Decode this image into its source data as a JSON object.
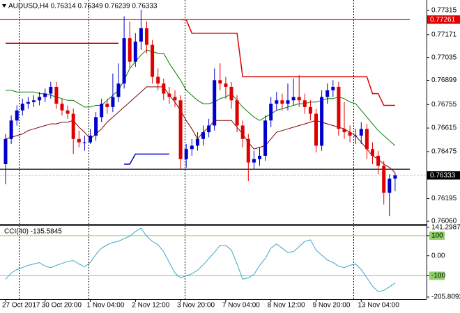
{
  "chart_data": [
    {
      "type": "candlestick",
      "title": "AUDUSD,H4  0.76314 0.76349 0.76239 0.76333",
      "categories": [
        "27 Oct 2017",
        null,
        null,
        null,
        null,
        null,
        null,
        "30 Oct 20:00",
        null,
        null,
        null,
        null,
        null,
        null,
        null,
        "1 Nov 04:00",
        null,
        null,
        null,
        null,
        null,
        null,
        null,
        "2 Nov 12:00",
        null,
        null,
        null,
        null,
        null,
        null,
        null,
        "3 Nov 20:00",
        null,
        null,
        null,
        null,
        null,
        null,
        null,
        "7 Nov 04:00",
        null,
        null,
        null,
        null,
        null,
        null,
        null,
        "8 Nov 12:00",
        null,
        null,
        null,
        null,
        null,
        null,
        null,
        "9 Nov 20:00",
        null,
        null,
        null,
        null,
        null,
        null,
        null,
        "13 Nov 04:00",
        null,
        null,
        null,
        null,
        null,
        null
      ],
      "open": [
        0.764,
        0.7655,
        0.7666,
        0.7672,
        0.7676,
        0.7677,
        0.7678,
        0.768,
        0.7682,
        0.7686,
        0.7676,
        0.7672,
        0.767,
        0.7655,
        0.7653,
        0.7653,
        0.7657,
        0.7668,
        0.7676,
        0.7674,
        0.768,
        0.7688,
        0.7715,
        0.7701,
        0.7713,
        0.7721,
        0.7711,
        0.7692,
        0.7688,
        0.7682,
        0.768,
        0.7678,
        0.7643,
        0.7649,
        0.7651,
        0.7655,
        0.7659,
        0.7663,
        0.769,
        0.7688,
        0.7686,
        0.7678,
        0.7663,
        0.7655,
        0.7641,
        0.7643,
        0.7645,
        0.7666,
        0.7676,
        0.7678,
        0.7676,
        0.7678,
        0.768,
        0.7678,
        0.7674,
        0.767,
        0.7651,
        0.768,
        0.7684,
        0.7686,
        0.7661,
        0.7659,
        0.7657,
        0.7657,
        0.7661,
        0.7649,
        0.7645,
        0.7639,
        0.7623,
        0.76314
      ],
      "high": [
        0.7658,
        0.7669,
        0.7675,
        0.7679,
        0.768,
        0.7681,
        0.7683,
        0.7685,
        0.7689,
        0.7689,
        0.7679,
        0.7675,
        0.7673,
        0.766,
        0.7657,
        0.7661,
        0.7671,
        0.7679,
        0.7679,
        0.7694,
        0.77,
        0.7728,
        0.7725,
        0.7718,
        0.7732,
        0.7725,
        0.7714,
        0.7697,
        0.7691,
        0.7686,
        0.7684,
        0.7681,
        0.7652,
        0.7655,
        0.7659,
        0.7663,
        0.7667,
        0.7697,
        0.77,
        0.7692,
        0.7689,
        0.7681,
        0.7666,
        0.7658,
        0.7648,
        0.765,
        0.7669,
        0.768,
        0.7683,
        0.7682,
        0.7688,
        0.7691,
        0.7693,
        0.7682,
        0.7678,
        0.7673,
        0.7684,
        0.7688,
        0.769,
        0.7689,
        0.7677,
        0.7663,
        0.7661,
        0.7665,
        0.7664,
        0.7653,
        0.7648,
        0.7642,
        0.7634,
        0.76349
      ],
      "low": [
        0.7628,
        0.7652,
        0.7663,
        0.7669,
        0.7673,
        0.7674,
        0.7675,
        0.7677,
        0.7679,
        0.7673,
        0.7669,
        0.7667,
        0.7646,
        0.765,
        0.7648,
        0.7652,
        0.7654,
        0.7665,
        0.767,
        0.7671,
        0.7677,
        0.7685,
        0.7697,
        0.7698,
        0.7708,
        0.7706,
        0.7688,
        0.7684,
        0.7678,
        0.7676,
        0.7674,
        0.7637,
        0.7638,
        0.7645,
        0.7648,
        0.7651,
        0.7656,
        0.766,
        0.7684,
        0.7679,
        0.7673,
        0.7659,
        0.765,
        0.763,
        0.7637,
        0.7639,
        0.7642,
        0.7662,
        0.7672,
        0.7672,
        0.7672,
        0.7675,
        0.7674,
        0.767,
        0.7666,
        0.7647,
        0.7648,
        0.7676,
        0.768,
        0.7657,
        0.7655,
        0.7653,
        0.7652,
        0.7652,
        0.7643,
        0.764,
        0.7634,
        0.7616,
        0.7609,
        0.76239
      ],
      "close": [
        0.7655,
        0.7666,
        0.7672,
        0.7676,
        0.7677,
        0.7678,
        0.768,
        0.7682,
        0.7686,
        0.7676,
        0.7672,
        0.767,
        0.7655,
        0.7653,
        0.7653,
        0.7657,
        0.7668,
        0.7676,
        0.7674,
        0.768,
        0.7688,
        0.7715,
        0.7701,
        0.7713,
        0.7721,
        0.7711,
        0.7692,
        0.7688,
        0.7682,
        0.768,
        0.7678,
        0.7643,
        0.7649,
        0.7651,
        0.7655,
        0.7659,
        0.7663,
        0.769,
        0.7688,
        0.7686,
        0.7678,
        0.7663,
        0.7655,
        0.7641,
        0.7643,
        0.7645,
        0.7666,
        0.7676,
        0.7678,
        0.7676,
        0.7678,
        0.768,
        0.7678,
        0.7674,
        0.767,
        0.7651,
        0.768,
        0.7684,
        0.7686,
        0.7661,
        0.7659,
        0.7657,
        0.7657,
        0.7661,
        0.7649,
        0.7645,
        0.7639,
        0.7623,
        0.76314,
        0.76333
      ],
      "up_color": "#0000cc",
      "down_color": "#e00000",
      "series": [
        {
          "color": "#008000",
          "values": [
            0.7684,
            0.7684,
            0.7683,
            0.7683,
            0.7683,
            0.7683,
            0.7682,
            0.7682,
            0.7681,
            0.768,
            0.7679,
            0.7678,
            0.7678,
            0.7676,
            0.7674,
            0.7674,
            0.7675,
            0.7675,
            0.7678,
            0.7681,
            0.7684,
            0.769,
            0.7697,
            0.7701,
            0.7705,
            0.7708,
            0.7707,
            0.7706,
            0.7706,
            0.77,
            0.7695,
            0.769,
            0.7684,
            0.7681,
            0.7678,
            0.7676,
            0.7676,
            0.7677,
            0.7679,
            0.768,
            0.7682,
            0.7678,
            0.7674,
            0.7671,
            0.7668,
            0.7666,
            0.7668,
            0.767,
            0.7672,
            0.7673,
            0.7674,
            0.7675,
            0.7676,
            0.7676,
            0.7677,
            0.7677,
            0.7678,
            0.7679,
            0.7679,
            0.768,
            0.7679,
            0.7677,
            0.7676,
            0.7672,
            0.7668,
            0.7664,
            0.766,
            0.7657,
            0.7654,
            0.7651
          ]
        },
        {
          "color": "#800000",
          "values": [
            0.7655,
            0.7656,
            0.7657,
            0.7658,
            0.766,
            0.7661,
            0.7662,
            0.7663,
            0.7664,
            0.7664,
            0.7665,
            0.7665,
            0.7666,
            0.7662,
            0.7659,
            0.7655,
            0.7658,
            0.7661,
            0.7665,
            0.7668,
            0.7671,
            0.7674,
            0.7677,
            0.768,
            0.7683,
            0.7686,
            0.7686,
            0.7686,
            0.7686,
            0.7681,
            0.7677,
            0.7672,
            0.7666,
            0.7661,
            0.7655,
            0.7659,
            0.7662,
            0.7666,
            0.7666,
            0.7666,
            0.7666,
            0.7662,
            0.7658,
            0.7653,
            0.7649,
            0.765,
            0.7651,
            0.7655,
            0.7659,
            0.766,
            0.7661,
            0.7662,
            0.7663,
            0.7664,
            0.7665,
            0.7666,
            0.7665,
            0.7664,
            0.7663,
            0.7662,
            0.7661,
            0.7659,
            0.7657,
            0.7653,
            0.7649,
            0.7645,
            0.7643,
            0.764,
            0.7638,
            0.7635
          ]
        },
        {
          "color": "#e00000",
          "values": [
            0.7712,
            0.7712,
            0.7712,
            0.7712,
            0.7712,
            0.7712,
            0.7712,
            0.7712,
            0.7712,
            0.7712,
            0.7712,
            0.7712,
            0.7712,
            0.7712,
            0.7712,
            0.7712,
            0.7712,
            0.7712,
            0.7712,
            0.7712,
            0.7712,
            null,
            null,
            null,
            null,
            null,
            null,
            null,
            null,
            null,
            null,
            0.7726,
            0.7726,
            0.7718,
            0.7718,
            0.7718,
            0.7718,
            0.7718,
            0.7718,
            0.7718,
            0.7718,
            0.7718,
            0.7692,
            0.7692,
            0.7692,
            0.7692,
            0.7692,
            0.7692,
            0.7692,
            0.7692,
            0.7692,
            0.7692,
            0.7692,
            0.7692,
            0.7692,
            0.7692,
            0.7692,
            0.7692,
            0.7692,
            0.7692,
            0.7692,
            0.7692,
            0.7692,
            0.7692,
            0.7692,
            0.7682,
            0.7682,
            0.7675,
            0.7675,
            0.7675
          ]
        },
        {
          "color": "#0000cc",
          "values": [
            null,
            null,
            null,
            null,
            null,
            null,
            null,
            null,
            null,
            null,
            null,
            null,
            null,
            null,
            null,
            null,
            null,
            null,
            null,
            null,
            null,
            0.764,
            0.764,
            0.7646,
            0.7646,
            0.7646,
            0.7646,
            0.7646,
            0.7646,
            0.7646,
            null,
            null,
            null,
            null,
            null,
            null,
            null,
            null,
            null,
            null,
            null,
            null,
            null,
            null,
            null,
            null,
            null,
            null,
            null,
            null,
            null,
            null,
            null,
            null,
            null,
            null,
            null,
            null,
            null,
            null,
            null,
            null,
            null,
            null,
            null,
            null,
            null,
            null,
            null,
            null
          ]
        }
      ],
      "hlines": [
        {
          "value": 0.77261,
          "color": "#e00000",
          "axis_label": true
        },
        {
          "value": 0.7637,
          "color": "#000000",
          "axis_label": false
        }
      ],
      "current_price": 0.76333,
      "ylim": [
        0.76048,
        0.77365
      ],
      "yticks": [
        0.77315,
        0.77171,
        0.77035,
        0.76899,
        0.76755,
        0.76615,
        0.76475,
        0.76195,
        {
          "value": 0.7606,
          "label": "0.76060"
        }
      ]
    },
    {
      "type": "line",
      "title": "CCI(40) -135.5845",
      "color": "#3aa7c4",
      "values": [
        -117,
        -86,
        -69,
        -59,
        -48,
        -41,
        -34,
        -52,
        -59,
        -48,
        -38,
        -28,
        -24,
        -41,
        -55,
        -34,
        7,
        38,
        55,
        66,
        72,
        86,
        97,
        121,
        138,
        97,
        72,
        55,
        21,
        -34,
        -86,
        -110,
        -100,
        -90,
        -72,
        -45,
        -14,
        17,
        52,
        52,
        28,
        -41,
        -117,
        -110,
        -93,
        -48,
        -14,
        38,
        59,
        38,
        17,
        21,
        45,
        72,
        79,
        28,
        3,
        -21,
        -34,
        -52,
        -59,
        -48,
        -41,
        -69,
        -110,
        -152,
        -179,
        -172,
        -155,
        -135.5845
      ],
      "levels": [
        100,
        -100
      ],
      "level_color": "#8fd16a",
      "ylim": [
        -205.8092,
        141.2987
      ],
      "yticks": [
        141.2987,
        100,
        {
          "value": 0,
          "label": "0.00"
        },
        -100,
        -205.8092
      ]
    }
  ]
}
